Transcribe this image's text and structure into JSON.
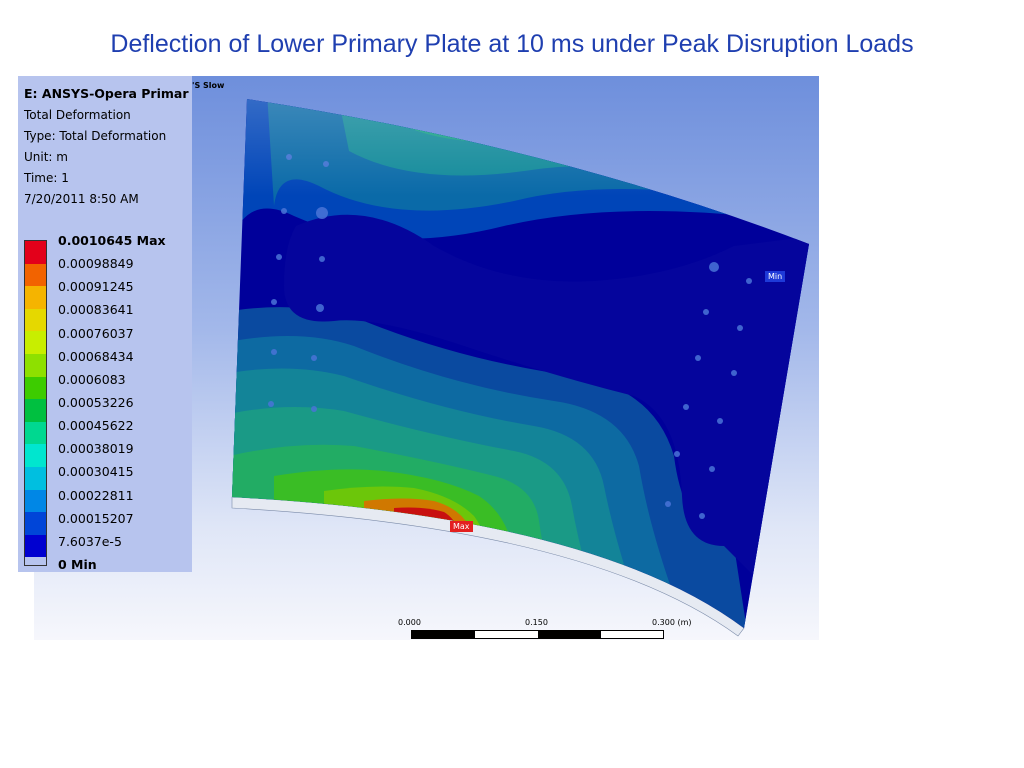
{
  "slide": {
    "title": "Deflection of Lower Primary Plate at 10 ms under Peak Disruption Loads"
  },
  "result_info": {
    "header": "E: ANSYS-Opera Primar",
    "header_overflow": "'S Slow",
    "lines": [
      "Total Deformation",
      "Type: Total Deformation",
      "Unit: m",
      "Time: 1",
      "7/20/2011 8:50 AM"
    ]
  },
  "legend": {
    "colors": [
      "#e3001a",
      "#f26300",
      "#f5b400",
      "#e5d800",
      "#c8ee00",
      "#8ee000",
      "#3dcc00",
      "#00c040",
      "#00d890",
      "#00e6cf",
      "#00bfe0",
      "#0087e6",
      "#0045d8",
      "#0000d0"
    ],
    "labels": [
      "0.0010645 Max",
      "0.00098849",
      "0.00091245",
      "0.00083641",
      "0.00076037",
      "0.00068434",
      "0.0006083",
      "0.00053226",
      "0.00045622",
      "0.00038019",
      "0.00030415",
      "0.00022811",
      "0.00015207",
      "7.6037e-5",
      "0 Min"
    ],
    "max_label_index": 0,
    "min_label_index": 14
  },
  "markers": {
    "max": "Max",
    "min": "Min"
  },
  "scale_bar": {
    "ticks": [
      "0.000",
      "0.150",
      "0.300 (m)"
    ]
  }
}
